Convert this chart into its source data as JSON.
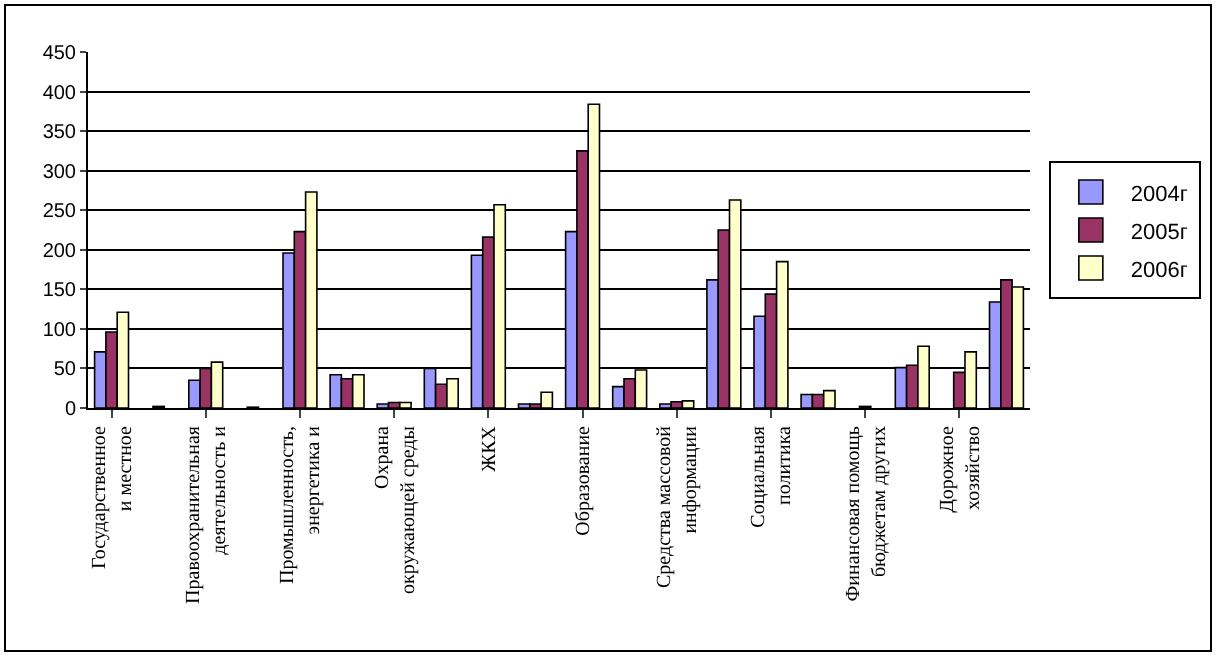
{
  "chart_data": {
    "type": "bar",
    "categories": [
      "Государственное и местное",
      null,
      "Правоохранительная деятельность и",
      null,
      "Промышленность, энергетика и",
      null,
      "Охрана окружающей среды",
      null,
      "ЖКХ",
      null,
      "Образование",
      null,
      "Средства массовой информации",
      null,
      "Социальная политика",
      null,
      "Финансовая помощь бюджетам других",
      null,
      "Дорожное хозяйство",
      null
    ],
    "series": [
      {
        "name": "2004г",
        "color": "#9999ff",
        "values": [
          71,
          null,
          35,
          null,
          196,
          42,
          5,
          50,
          193,
          5,
          223,
          27,
          5,
          162,
          116,
          17,
          0,
          51,
          0,
          134
        ]
      },
      {
        "name": "2005г",
        "color": "#993366",
        "values": [
          96,
          2,
          50,
          1,
          223,
          37,
          7,
          30,
          216,
          5,
          325,
          37,
          8,
          225,
          144,
          17,
          2,
          54,
          45,
          162
        ]
      },
      {
        "name": "2006г",
        "color": "#ffffcc",
        "values": [
          121,
          null,
          58,
          null,
          273,
          42,
          7,
          37,
          257,
          20,
          384,
          48,
          9,
          263,
          185,
          22,
          0,
          78,
          71,
          153
        ]
      }
    ],
    "ylim": [
      0,
      450
    ],
    "yticks": [
      0,
      50,
      100,
      150,
      200,
      250,
      300,
      350,
      400,
      450
    ],
    "grid": "y",
    "legend": "right"
  }
}
